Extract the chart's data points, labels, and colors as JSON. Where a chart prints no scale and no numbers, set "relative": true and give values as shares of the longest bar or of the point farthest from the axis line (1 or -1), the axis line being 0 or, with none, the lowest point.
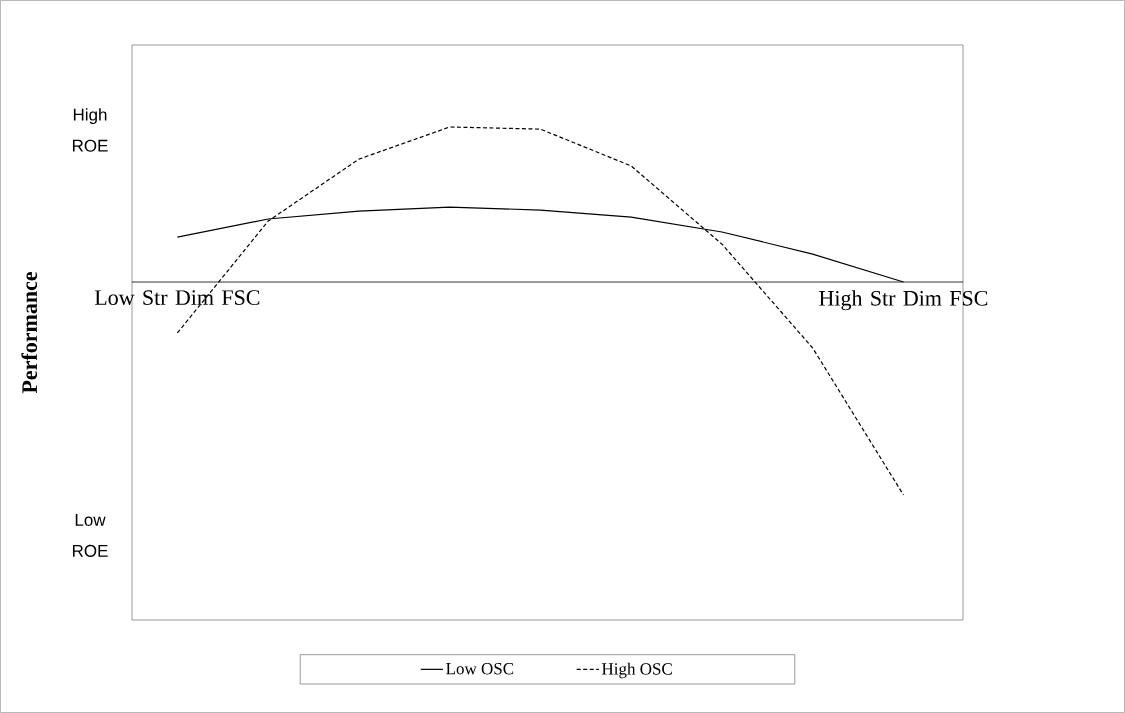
{
  "chart_data": {
    "type": "line",
    "relative": true,
    "ylabel": "Performance",
    "categories": [
      "Low Str Dim FSC",
      null,
      null,
      null,
      null,
      null,
      null,
      null,
      "High Str Dim FSC"
    ],
    "series": [
      {
        "name": "Low OSC",
        "color": "#000000",
        "line_style": "solid",
        "values": [
          0.211,
          0.296,
          0.333,
          0.352,
          0.338,
          0.305,
          0.235,
          0.131,
          0.0
        ]
      },
      {
        "name": "High OSC",
        "color": "#000000",
        "line_style": "dashed",
        "values": [
          -0.239,
          0.286,
          0.577,
          0.728,
          0.718,
          0.545,
          0.178,
          -0.31,
          -1.0
        ]
      }
    ],
    "annotations": [
      "High ROE",
      "Low ROE"
    ],
    "legend": "bottom",
    "marker": "none"
  }
}
